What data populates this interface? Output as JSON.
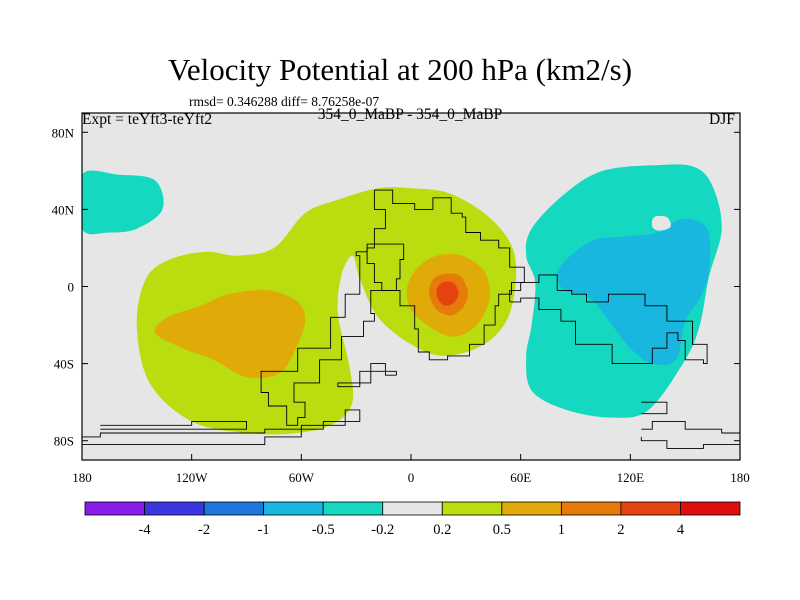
{
  "header": {
    "title": "Velocity Potential at 200 hPa (km2/s)",
    "stats": "rmsd= 0.346288 diff= 8.76258e-07",
    "left_label": "Expt = teYft3-teYft2",
    "center_label": "354_0_MaBP - 354_0_MaBP",
    "right_label": "DJF"
  },
  "chart_data": {
    "type": "heatmap",
    "projection": "cylindrical-equidistant",
    "xlim": [
      -180,
      180
    ],
    "ylim": [
      -90,
      90
    ],
    "x_ticks": [
      {
        "value": -180,
        "label": "180"
      },
      {
        "value": -120,
        "label": "120W"
      },
      {
        "value": -60,
        "label": "60W"
      },
      {
        "value": 0,
        "label": "0"
      },
      {
        "value": 60,
        "label": "60E"
      },
      {
        "value": 120,
        "label": "120E"
      },
      {
        "value": 180,
        "label": "180"
      }
    ],
    "y_ticks": [
      {
        "value": 80,
        "label": "80N"
      },
      {
        "value": 40,
        "label": "40N"
      },
      {
        "value": 0,
        "label": "0"
      },
      {
        "value": -40,
        "label": "40S"
      },
      {
        "value": -80,
        "label": "80S"
      }
    ],
    "colorbar": {
      "levels": [
        -4,
        -2,
        -1,
        -0.5,
        -0.2,
        0.2,
        0.5,
        1,
        2,
        4
      ],
      "labels": [
        "-4",
        "-2",
        "-1",
        "-0.5",
        "-0.2",
        "0.2",
        "0.5",
        "1",
        "2",
        "4"
      ],
      "colors": [
        "#8a1ce8",
        "#3b37e0",
        "#1e78dc",
        "#19b6e0",
        "#14d8bf",
        "#e6e6e6",
        "#b9dd0f",
        "#e0aa08",
        "#e67a0a",
        "#e54410",
        "#e00f0f"
      ]
    },
    "regions": [
      {
        "name": "western-hemisphere-positive-band",
        "bin": "0.2 to 0.5",
        "points": [
          [
            -132,
            14
          ],
          [
            -112,
            18
          ],
          [
            -95,
            16
          ],
          [
            -75,
            20
          ],
          [
            -58,
            38
          ],
          [
            -40,
            45
          ],
          [
            -18,
            51
          ],
          [
            0,
            51
          ],
          [
            22,
            48
          ],
          [
            45,
            34
          ],
          [
            57,
            15
          ],
          [
            54,
            -14
          ],
          [
            40,
            -30
          ],
          [
            18,
            -36
          ],
          [
            0,
            -30
          ],
          [
            -18,
            -16
          ],
          [
            -28,
            4
          ],
          [
            -32,
            16
          ],
          [
            -38,
            6
          ],
          [
            -40,
            -14
          ],
          [
            -34,
            -40
          ],
          [
            -32,
            -60
          ],
          [
            -42,
            -71
          ],
          [
            -62,
            -76
          ],
          [
            -90,
            -76
          ],
          [
            -120,
            -70
          ],
          [
            -143,
            -50
          ],
          [
            -150,
            -20
          ],
          [
            -145,
            4
          ]
        ]
      },
      {
        "name": "western-hemisphere-core",
        "bin": "0.5 to 1",
        "points": [
          [
            -133,
            -16
          ],
          [
            -115,
            -10
          ],
          [
            -100,
            -4
          ],
          [
            -78,
            -2
          ],
          [
            -62,
            -8
          ],
          [
            -58,
            -18
          ],
          [
            -63,
            -32
          ],
          [
            -72,
            -45
          ],
          [
            -90,
            -47
          ],
          [
            -108,
            -38
          ],
          [
            -125,
            -32
          ],
          [
            -140,
            -24
          ]
        ]
      },
      {
        "name": "african-center-ring",
        "bin": "0.5 to 1",
        "points": [
          [
            14,
            16
          ],
          [
            28,
            16
          ],
          [
            40,
            8
          ],
          [
            43,
            -6
          ],
          [
            36,
            -20
          ],
          [
            24,
            -26
          ],
          [
            12,
            -22
          ],
          [
            0,
            -12
          ],
          [
            -2,
            0
          ],
          [
            4,
            10
          ]
        ]
      },
      {
        "name": "african-center-mid",
        "bin": "1 to 2",
        "points": [
          [
            16,
            6
          ],
          [
            26,
            6
          ],
          [
            31,
            -2
          ],
          [
            29,
            -10
          ],
          [
            22,
            -15
          ],
          [
            14,
            -12
          ],
          [
            10,
            -4
          ],
          [
            11,
            2
          ]
        ]
      },
      {
        "name": "african-center-core",
        "bin": "2 to 4",
        "points": [
          [
            17,
            2
          ],
          [
            23,
            2
          ],
          [
            26,
            -3
          ],
          [
            24,
            -8
          ],
          [
            19,
            -10
          ],
          [
            15,
            -7
          ],
          [
            14,
            -2
          ]
        ]
      },
      {
        "name": "north-pacific-negative",
        "bin": "-0.5 to -0.2",
        "points": [
          [
            -180,
            58
          ],
          [
            -160,
            58
          ],
          [
            -140,
            55
          ],
          [
            -136,
            40
          ],
          [
            -150,
            30
          ],
          [
            -165,
            28
          ],
          [
            -180,
            30
          ]
        ]
      },
      {
        "name": "eastern-hemisphere-negative",
        "bin": "-0.5 to -0.2",
        "points": [
          [
            66,
            30
          ],
          [
            84,
            48
          ],
          [
            105,
            60
          ],
          [
            135,
            63
          ],
          [
            155,
            62
          ],
          [
            165,
            52
          ],
          [
            170,
            30
          ],
          [
            163,
            5
          ],
          [
            158,
            -20
          ],
          [
            150,
            -38
          ],
          [
            130,
            -64
          ],
          [
            110,
            -68
          ],
          [
            85,
            -64
          ],
          [
            66,
            -54
          ],
          [
            63,
            -36
          ],
          [
            66,
            -20
          ],
          [
            68,
            2
          ],
          [
            63,
            16
          ]
        ]
      },
      {
        "name": "eastern-hemisphere-core",
        "bin": "-1 to -0.5",
        "points": [
          [
            85,
            14
          ],
          [
            100,
            24
          ],
          [
            118,
            26
          ],
          [
            135,
            28
          ],
          [
            148,
            35
          ],
          [
            162,
            30
          ],
          [
            163,
            8
          ],
          [
            158,
            -6
          ],
          [
            150,
            -18
          ],
          [
            145,
            -38
          ],
          [
            132,
            -40
          ],
          [
            120,
            -32
          ],
          [
            110,
            -20
          ],
          [
            98,
            -6
          ],
          [
            84,
            -2
          ],
          [
            80,
            6
          ]
        ]
      },
      {
        "name": "enclosed-near-zero-patch",
        "bin": "-0.2 to 0.2",
        "points": [
          [
            133,
            36
          ],
          [
            140,
            36
          ],
          [
            142,
            31
          ],
          [
            136,
            29
          ],
          [
            132,
            31
          ]
        ]
      }
    ],
    "coastlines": [
      [
        [
          -20,
          50
        ],
        [
          -10,
          50
        ],
        [
          -10,
          43
        ],
        [
          2,
          40
        ],
        [
          10,
          40
        ],
        [
          12,
          46
        ],
        [
          20,
          46
        ],
        [
          22,
          38
        ],
        [
          28,
          36
        ],
        [
          30,
          28
        ],
        [
          38,
          24
        ],
        [
          48,
          20
        ],
        [
          54,
          10
        ],
        [
          60,
          10
        ],
        [
          62,
          2
        ],
        [
          55,
          -4
        ],
        [
          48,
          -10
        ],
        [
          46,
          -20
        ],
        [
          40,
          -30
        ],
        [
          32,
          -36
        ],
        [
          20,
          -38
        ],
        [
          10,
          -34
        ],
        [
          4,
          -22
        ],
        [
          2,
          -10
        ],
        [
          -6,
          -2
        ],
        [
          -16,
          2
        ],
        [
          -20,
          12
        ],
        [
          -24,
          20
        ],
        [
          -20,
          30
        ],
        [
          -14,
          40
        ],
        [
          -20,
          50
        ]
      ],
      [
        [
          -4,
          22
        ],
        [
          -14,
          22
        ],
        [
          -24,
          18
        ],
        [
          -30,
          16
        ],
        [
          -28,
          -4
        ],
        [
          -36,
          -16
        ],
        [
          -44,
          -32
        ],
        [
          -62,
          -44
        ],
        [
          -82,
          -55
        ],
        [
          -78,
          -62
        ],
        [
          -68,
          -72
        ],
        [
          -62,
          -68
        ],
        [
          -58,
          -60
        ],
        [
          -64,
          -50
        ],
        [
          -50,
          -38
        ],
        [
          -38,
          -26
        ],
        [
          -26,
          -18
        ],
        [
          -20,
          -14
        ],
        [
          -22,
          -2
        ],
        [
          -8,
          4
        ],
        [
          -6,
          14
        ],
        [
          -4,
          22
        ]
      ],
      [
        [
          54,
          -8
        ],
        [
          60,
          -6
        ],
        [
          70,
          -12
        ],
        [
          82,
          -18
        ],
        [
          90,
          -30
        ],
        [
          102,
          -30
        ],
        [
          110,
          -40
        ],
        [
          124,
          -40
        ],
        [
          132,
          -32
        ],
        [
          140,
          -24
        ],
        [
          146,
          -28
        ],
        [
          150,
          -38
        ],
        [
          160,
          -40
        ],
        [
          162,
          -30
        ],
        [
          154,
          -18
        ],
        [
          140,
          -10
        ],
        [
          128,
          -4
        ],
        [
          108,
          -8
        ],
        [
          96,
          -4
        ],
        [
          88,
          -2
        ],
        [
          80,
          6
        ],
        [
          70,
          2
        ],
        [
          60,
          -2
        ],
        [
          54,
          -8
        ]
      ],
      [
        [
          -8,
          -46
        ],
        [
          -14,
          -40
        ],
        [
          -22,
          -50
        ],
        [
          -40,
          -52
        ],
        [
          -28,
          -44
        ],
        [
          -8,
          -46
        ]
      ],
      [
        [
          -180,
          -82
        ],
        [
          -130,
          -82
        ],
        [
          -80,
          -78
        ],
        [
          -60,
          -72
        ],
        [
          -36,
          -64
        ],
        [
          -28,
          -70
        ],
        [
          -48,
          -74
        ],
        [
          -80,
          -76
        ],
        [
          -120,
          -76
        ],
        [
          -170,
          -78
        ],
        [
          -180,
          -80
        ]
      ],
      [
        [
          -170,
          -72
        ],
        [
          -120,
          -70
        ],
        [
          -90,
          -74
        ],
        [
          -120,
          -74
        ],
        [
          -170,
          -74
        ]
      ],
      [
        [
          126,
          -74
        ],
        [
          132,
          -70
        ],
        [
          150,
          -74
        ],
        [
          170,
          -76
        ],
        [
          180,
          -82
        ],
        [
          160,
          -84
        ],
        [
          140,
          -80
        ],
        [
          126,
          -78
        ]
      ],
      [
        [
          126,
          -60
        ],
        [
          140,
          -60
        ],
        [
          140,
          -66
        ],
        [
          126,
          -66
        ]
      ]
    ]
  }
}
